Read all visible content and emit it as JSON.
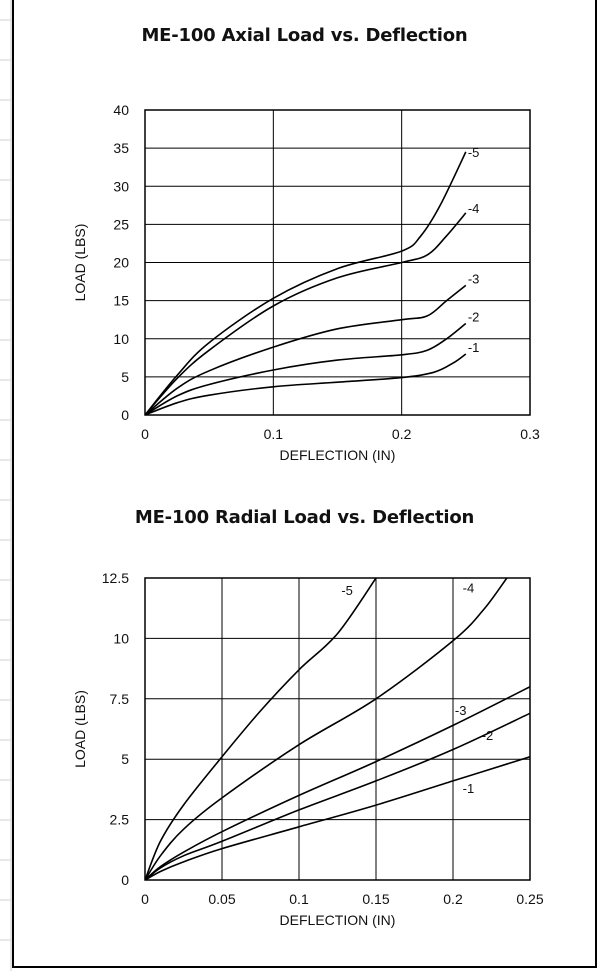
{
  "chart_data": [
    {
      "type": "line",
      "title": "ME-100 Axial Load vs. Deflection",
      "xlabel": "DEFLECTION (IN)",
      "ylabel": "LOAD (LBS)",
      "xlim": [
        0,
        0.3
      ],
      "ylim": [
        0,
        40
      ],
      "xticks": [
        0,
        0.1,
        0.2,
        0.3
      ],
      "xtick_labels": [
        "0",
        "0.1",
        "0.2",
        "0.3"
      ],
      "yticks": [
        0,
        5,
        10,
        15,
        20,
        25,
        30,
        35,
        40
      ],
      "ytick_labels": [
        "0",
        "5",
        "10",
        "15",
        "20",
        "25",
        "30",
        "35",
        "40"
      ],
      "grid": true,
      "series": [
        {
          "name": "-1",
          "x": [
            0,
            0.025,
            0.05,
            0.1,
            0.15,
            0.2,
            0.225,
            0.24,
            0.25
          ],
          "y": [
            0,
            1.6,
            2.6,
            3.7,
            4.3,
            4.9,
            5.6,
            6.8,
            8
          ]
        },
        {
          "name": "-2",
          "x": [
            0,
            0.025,
            0.05,
            0.1,
            0.15,
            0.2,
            0.22,
            0.235,
            0.25
          ],
          "y": [
            0,
            2.5,
            4.0,
            5.9,
            7.2,
            7.9,
            8.5,
            10.0,
            12
          ]
        },
        {
          "name": "-3",
          "x": [
            0,
            0.025,
            0.05,
            0.1,
            0.15,
            0.2,
            0.22,
            0.235,
            0.25
          ],
          "y": [
            0,
            3.5,
            5.8,
            8.9,
            11.3,
            12.5,
            13.0,
            15.0,
            17
          ]
        },
        {
          "name": "-4",
          "x": [
            0,
            0.025,
            0.05,
            0.1,
            0.15,
            0.2,
            0.22,
            0.235,
            0.25
          ],
          "y": [
            0,
            4.8,
            8.5,
            14.3,
            18.0,
            20.0,
            21.0,
            23.5,
            26.5
          ]
        },
        {
          "name": "-5",
          "x": [
            0,
            0.025,
            0.05,
            0.1,
            0.15,
            0.2,
            0.215,
            0.23,
            0.25
          ],
          "y": [
            0,
            5.2,
            9.5,
            15.3,
            19.2,
            21.5,
            23.5,
            27.5,
            34.5
          ]
        }
      ]
    },
    {
      "type": "line",
      "title": "ME-100 Radial Load vs. Deflection",
      "xlabel": "DEFLECTION (IN)",
      "ylabel": "LOAD (LBS)",
      "xlim": [
        0,
        0.25
      ],
      "ylim": [
        0,
        12.5
      ],
      "xticks": [
        0,
        0.05,
        0.1,
        0.15,
        0.2,
        0.25
      ],
      "xtick_labels": [
        "0",
        "0.05",
        "0.1",
        "0.15",
        "0.2",
        "0.25"
      ],
      "yticks": [
        0,
        2.5,
        5,
        7.5,
        10,
        12.5
      ],
      "ytick_labels": [
        "0",
        "2.5",
        "5",
        "7.5",
        "10",
        "12.5"
      ],
      "grid": true,
      "series": [
        {
          "name": "-1",
          "x": [
            0,
            0.01,
            0.025,
            0.05,
            0.1,
            0.15,
            0.2,
            0.25
          ],
          "y": [
            0,
            0.35,
            0.75,
            1.3,
            2.2,
            3.1,
            4.1,
            5.1
          ]
        },
        {
          "name": "-2",
          "x": [
            0,
            0.01,
            0.025,
            0.05,
            0.1,
            0.15,
            0.2,
            0.25
          ],
          "y": [
            0,
            0.5,
            1.0,
            1.6,
            2.9,
            4.1,
            5.4,
            6.9
          ]
        },
        {
          "name": "-3",
          "x": [
            0,
            0.01,
            0.025,
            0.05,
            0.1,
            0.15,
            0.2,
            0.25
          ],
          "y": [
            0,
            0.55,
            1.15,
            2.0,
            3.5,
            4.9,
            6.4,
            8.0
          ]
        },
        {
          "name": "-4",
          "x": [
            0,
            0.01,
            0.025,
            0.05,
            0.1,
            0.15,
            0.2,
            0.22,
            0.235
          ],
          "y": [
            0,
            1.0,
            2.1,
            3.4,
            5.6,
            7.5,
            9.9,
            11.2,
            12.5
          ]
        },
        {
          "name": "-5",
          "x": [
            0,
            0.01,
            0.025,
            0.05,
            0.075,
            0.1,
            0.125,
            0.15
          ],
          "y": [
            0,
            1.6,
            3.1,
            5.1,
            7.0,
            8.7,
            10.2,
            12.5
          ]
        }
      ]
    }
  ]
}
